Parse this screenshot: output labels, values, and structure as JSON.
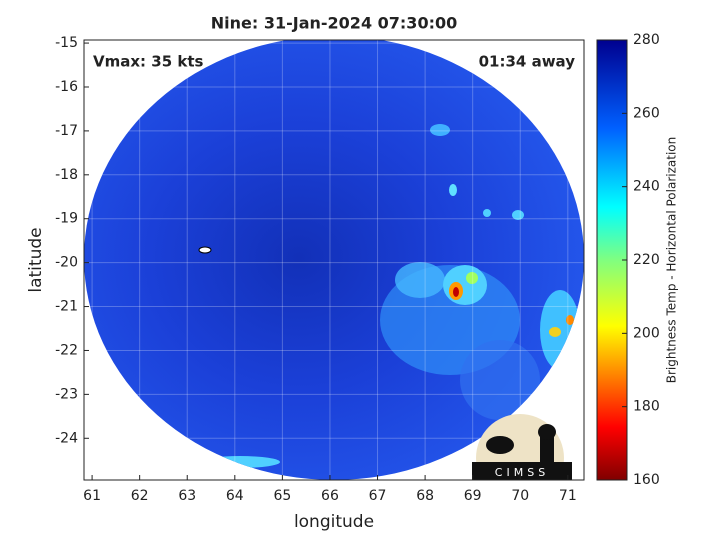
{
  "chart_data": {
    "type": "image-map",
    "title": "Nine: 31-Jan-2024 07:30:00",
    "xlabel": "longitude",
    "ylabel": "latitude",
    "annotations": [
      "Vmax: 35 kts",
      "01:34 away"
    ],
    "xlim": [
      60.83,
      71.34
    ],
    "xticks": [
      61,
      62,
      63,
      64,
      65,
      66,
      67,
      68,
      69,
      70,
      71
    ],
    "ylim": [
      -24.95,
      -14.93
    ],
    "yticks": [
      -15,
      -16,
      -17,
      -18,
      -19,
      -20,
      -21,
      -22,
      -23,
      -24
    ],
    "grid": true,
    "colorbar": {
      "label": "Brightness Temp - Horizontal Polarization",
      "clim": [
        160,
        280
      ],
      "ticks": [
        160,
        180,
        200,
        220,
        240,
        260,
        280
      ]
    },
    "logo": "CIMSS"
  }
}
